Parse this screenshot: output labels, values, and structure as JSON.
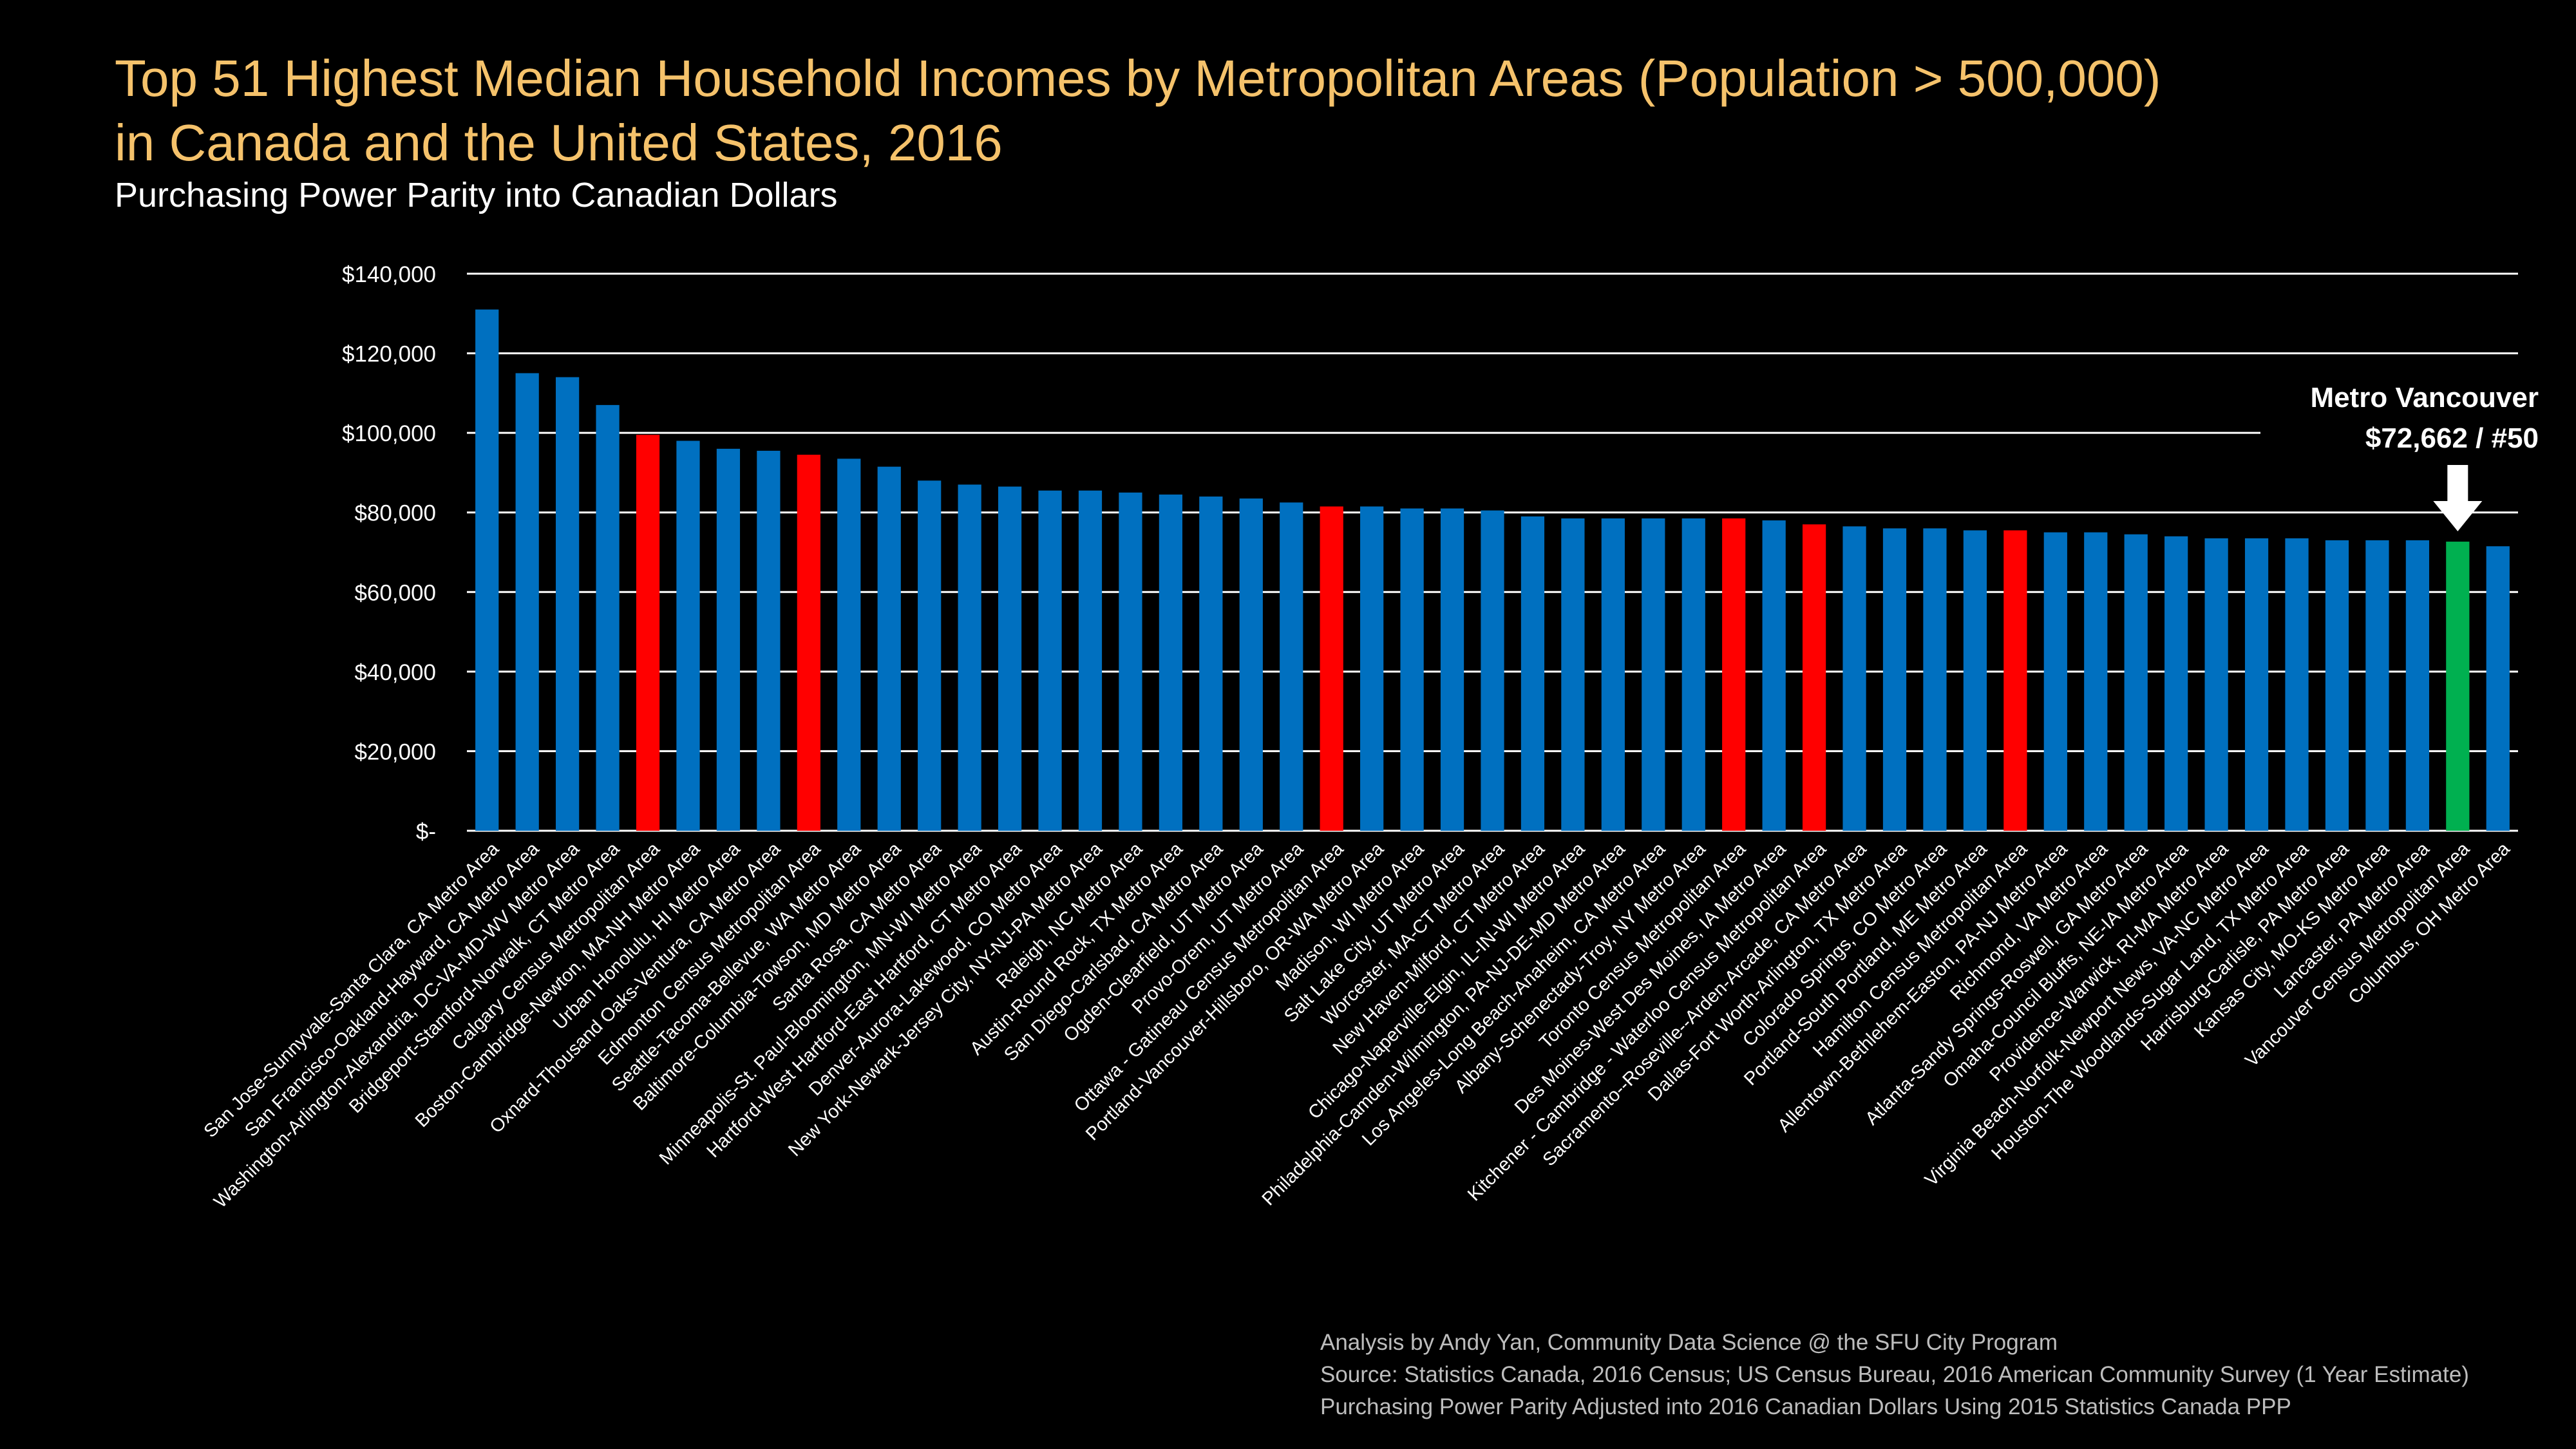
{
  "title_lines": [
    "Top 51 Highest Median Household Incomes by Metropolitan Areas (Population > 500,000)",
    "in Canada and the United States, 2016"
  ],
  "subtitle": "Purchasing Power Parity into Canadian Dollars",
  "notes": [
    "Analysis by Andy Yan, Community Data Science @ the SFU City Program",
    "Source: Statistics Canada, 2016 Census; US Census Bureau, 2016 American Community Survey (1 Year Estimate)",
    "Purchasing Power Parity Adjusted into 2016 Canadian Dollars Using 2015 Statistics Canada PPP"
  ],
  "colors": {
    "us": "#0070C0",
    "canada": "#FF0000",
    "highlight": "#00B050",
    "title": "#F5C26B",
    "grid": "#FFFFFF"
  },
  "chart_data": {
    "type": "bar",
    "ylim": [
      0,
      140000
    ],
    "yticks": [
      0,
      20000,
      40000,
      60000,
      80000,
      100000,
      120000,
      140000
    ],
    "ytick_labels": [
      "$-",
      "$20,000",
      "$40,000",
      "$60,000",
      "$80,000",
      "$100,000",
      "$120,000",
      "$140,000"
    ],
    "grid": true,
    "categories": [
      "San Jose-Sunnyvale-Santa Clara, CA Metro Area",
      "San Francisco-Oakland-Hayward, CA Metro Area",
      "Washington-Arlington-Alexandria, DC-VA-MD-WV Metro Area",
      "Bridgeport-Stamford-Norwalk, CT Metro Area",
      "Calgary Census Metropolitan Area",
      "Boston-Cambridge-Newton, MA-NH Metro Area",
      "Urban Honolulu, HI Metro Area",
      "Oxnard-Thousand Oaks-Ventura, CA Metro Area",
      "Edmonton Census Metropolitan Area",
      "Seattle-Tacoma-Bellevue, WA Metro Area",
      "Baltimore-Columbia-Towson, MD Metro Area",
      "Santa Rosa, CA Metro Area",
      "Minneapolis-St. Paul-Bloomington, MN-WI Metro Area",
      "Hartford-West Hartford-East Hartford, CT Metro Area",
      "Denver-Aurora-Lakewood, CO Metro Area",
      "New York-Newark-Jersey City, NY-NJ-PA Metro Area",
      "Raleigh, NC Metro Area",
      "Austin-Round Rock, TX Metro Area",
      "San Diego-Carlsbad, CA Metro Area",
      "Ogden-Clearfield, UT Metro Area",
      "Provo-Orem, UT Metro Area",
      "Ottawa - Gatineau Census Metropolitan Area",
      "Portland-Vancouver-Hillsboro, OR-WA Metro Area",
      "Madison, WI Metro Area",
      "Salt Lake City, UT Metro Area",
      "Worcester, MA-CT Metro Area",
      "New Haven-Milford, CT Metro Area",
      "Chicago-Naperville-Elgin, IL-IN-WI Metro Area",
      "Philadelphia-Camden-Wilmington, PA-NJ-DE-MD Metro Area",
      "Los Angeles-Long Beach-Anaheim, CA Metro Area",
      "Albany-Schenectady-Troy, NY Metro Area",
      "Toronto Census Metropolitan Area",
      "Des Moines-West Des Moines, IA Metro Area",
      "Kitchener - Cambridge - Waterloo Census Metropolitan Area",
      "Sacramento--Roseville--Arden-Arcade, CA Metro Area",
      "Dallas-Fort Worth-Arlington, TX Metro Area",
      "Colorado Springs, CO Metro Area",
      "Portland-South Portland, ME Metro Area",
      "Hamilton Census Metropolitan Area",
      "Allentown-Bethlehem-Easton, PA-NJ Metro Area",
      "Richmond, VA Metro Area",
      "Atlanta-Sandy Springs-Roswell, GA Metro Area",
      "Omaha-Council Bluffs, NE-IA Metro Area",
      "Providence-Warwick, RI-MA Metro Area",
      "Virginia Beach-Norfolk-Newport News, VA-NC Metro Area",
      "Houston-The Woodlands-Sugar Land, TX Metro Area",
      "Harrisburg-Carlisle, PA Metro Area",
      "Kansas City, MO-KS Metro Area",
      "Lancaster, PA Metro Area",
      "Vancouver Census Metropolitan Area",
      "Columbus, OH Metro Area"
    ],
    "values": [
      131000,
      115000,
      114000,
      107000,
      99500,
      98000,
      96000,
      95500,
      94500,
      93500,
      91500,
      88000,
      87000,
      86500,
      85500,
      85500,
      85000,
      84500,
      84000,
      83500,
      82500,
      81500,
      81500,
      81000,
      81000,
      80500,
      79000,
      78500,
      78500,
      78500,
      78500,
      78500,
      78000,
      77000,
      76500,
      76000,
      76000,
      75500,
      75500,
      75000,
      75000,
      74500,
      74000,
      73500,
      73500,
      73500,
      73000,
      73000,
      73000,
      72662,
      71500
    ],
    "bar_groups": [
      "us",
      "us",
      "us",
      "us",
      "canada",
      "us",
      "us",
      "us",
      "canada",
      "us",
      "us",
      "us",
      "us",
      "us",
      "us",
      "us",
      "us",
      "us",
      "us",
      "us",
      "us",
      "canada",
      "us",
      "us",
      "us",
      "us",
      "us",
      "us",
      "us",
      "us",
      "us",
      "canada",
      "us",
      "canada",
      "us",
      "us",
      "us",
      "us",
      "canada",
      "us",
      "us",
      "us",
      "us",
      "us",
      "us",
      "us",
      "us",
      "us",
      "us",
      "highlight",
      "us"
    ],
    "annotation": {
      "line1": "Metro Vancouver",
      "line2": "$72,662 / #50",
      "target_index": 49
    }
  }
}
